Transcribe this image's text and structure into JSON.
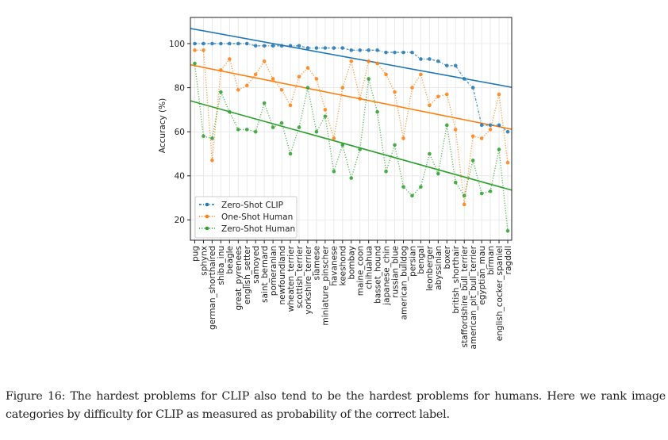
{
  "chart_data": {
    "type": "line",
    "title": "",
    "xlabel": "",
    "ylabel": "Accuracy (%)",
    "ylim": [
      8,
      110
    ],
    "yticks": [
      20,
      40,
      60,
      80,
      100
    ],
    "grid": true,
    "legend_position": "bottom-left",
    "categories": [
      "pug",
      "sphynx",
      "german_shorthaired",
      "shiba_inu",
      "beagle",
      "great_pyrenees",
      "english_setter",
      "samoyed",
      "saint_bernard",
      "pomeranian",
      "newfoundland",
      "wheaten_terrier",
      "scottish_terrier",
      "yorkshire_terrier",
      "siamese",
      "miniature_pinscher",
      "havanese",
      "keeshond",
      "bombay",
      "maine_coon",
      "chihuahua",
      "basset_hound",
      "japanese_chin",
      "russian_blue",
      "american_bulldog",
      "persian",
      "bengal",
      "leonberger",
      "abyssinian",
      "boxer",
      "british_shorthair",
      "staffordshire_bull_terrier",
      "american_pit_bull_terrier",
      "egyptian_mau",
      "birman",
      "english_cocker_spaniel",
      "ragdoll"
    ],
    "series": [
      {
        "name": "Zero-Shot CLIP",
        "color": "#1f77b4",
        "line_style": "dash-dot",
        "values": [
          100,
          100,
          100,
          100,
          100,
          100,
          100,
          99,
          99,
          99,
          99,
          99,
          99,
          98,
          98,
          98,
          98,
          98,
          97,
          97,
          97,
          97,
          96,
          96,
          96,
          96,
          93,
          93,
          92,
          90,
          90,
          84,
          80,
          63,
          63,
          63,
          60
        ],
        "trend": [
          106.5,
          80.5
        ]
      },
      {
        "name": "One-Shot Human",
        "color": "#ff7f0e",
        "line_style": "dotted",
        "values": [
          97,
          97,
          47,
          88,
          93,
          79,
          81,
          86,
          92,
          84,
          79,
          72,
          85,
          89,
          84,
          70,
          57,
          80,
          92,
          75,
          92,
          91,
          86,
          78,
          57,
          80,
          86,
          72,
          76,
          77,
          61,
          27,
          58,
          57,
          61,
          77,
          46
        ],
        "trend": [
          90,
          61.5
        ]
      },
      {
        "name": "Zero-Shot Human",
        "color": "#2ca02c",
        "line_style": "dotted",
        "values": [
          91,
          58,
          57,
          78,
          69,
          61,
          61,
          60,
          73,
          62,
          64,
          50,
          62,
          80,
          60,
          67,
          42,
          54,
          39,
          52,
          84,
          69,
          42,
          54,
          35,
          31,
          35,
          50,
          41,
          63,
          37,
          31,
          47,
          32,
          33,
          52,
          15
        ],
        "trend": [
          73.5,
          34
        ]
      }
    ]
  },
  "caption": "Figure 16: The hardest problems for CLIP also tend to be the hardest problems for humans. Here we rank image categories by difficulty for CLIP as measured as probability of the correct label."
}
